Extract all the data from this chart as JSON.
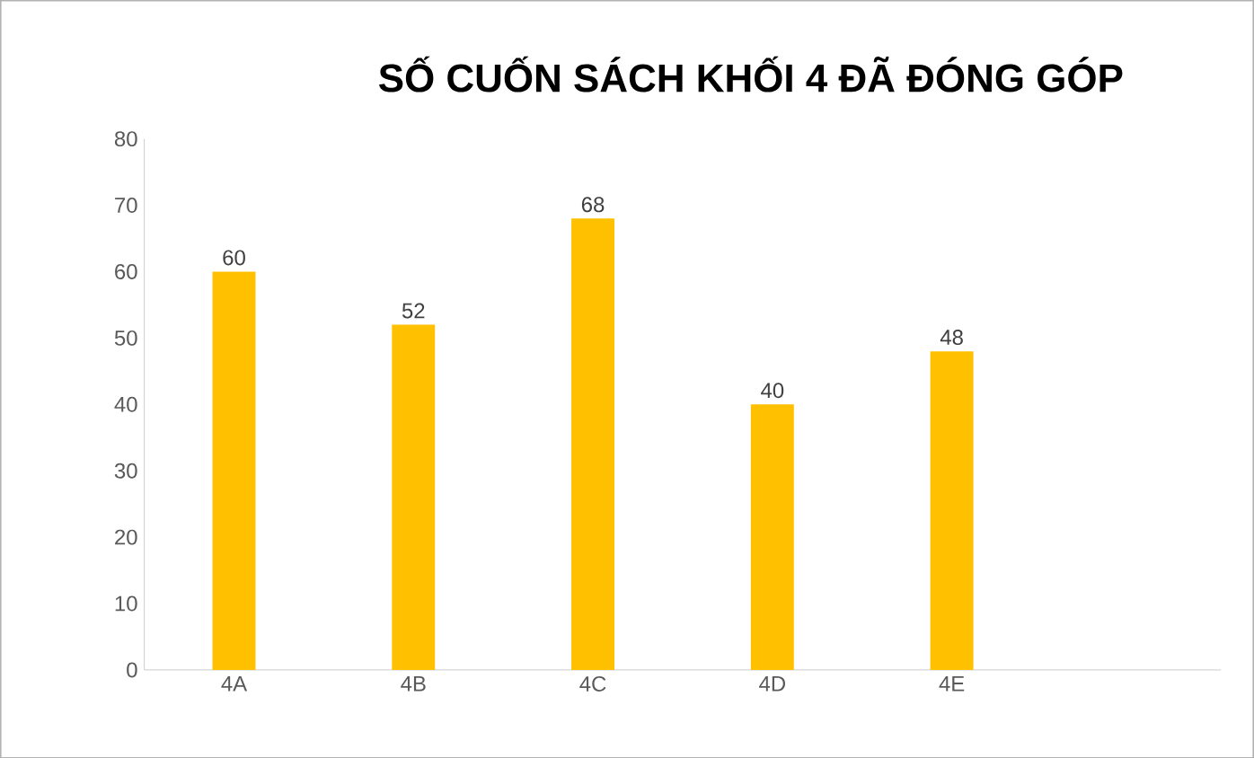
{
  "chart_data": {
    "type": "bar",
    "title": "SỐ CUỐN SÁCH KHỐI 4 ĐÃ ĐÓNG GÓP",
    "categories": [
      "4A",
      "4B",
      "4C",
      "4D",
      "4E",
      null
    ],
    "values": [
      60,
      52,
      68,
      40,
      48,
      null
    ],
    "color": "#ffc000",
    "ylim": [
      0,
      80
    ],
    "yticks": [
      0,
      10,
      20,
      30,
      40,
      50,
      60,
      70,
      80
    ],
    "data_labels": true
  }
}
